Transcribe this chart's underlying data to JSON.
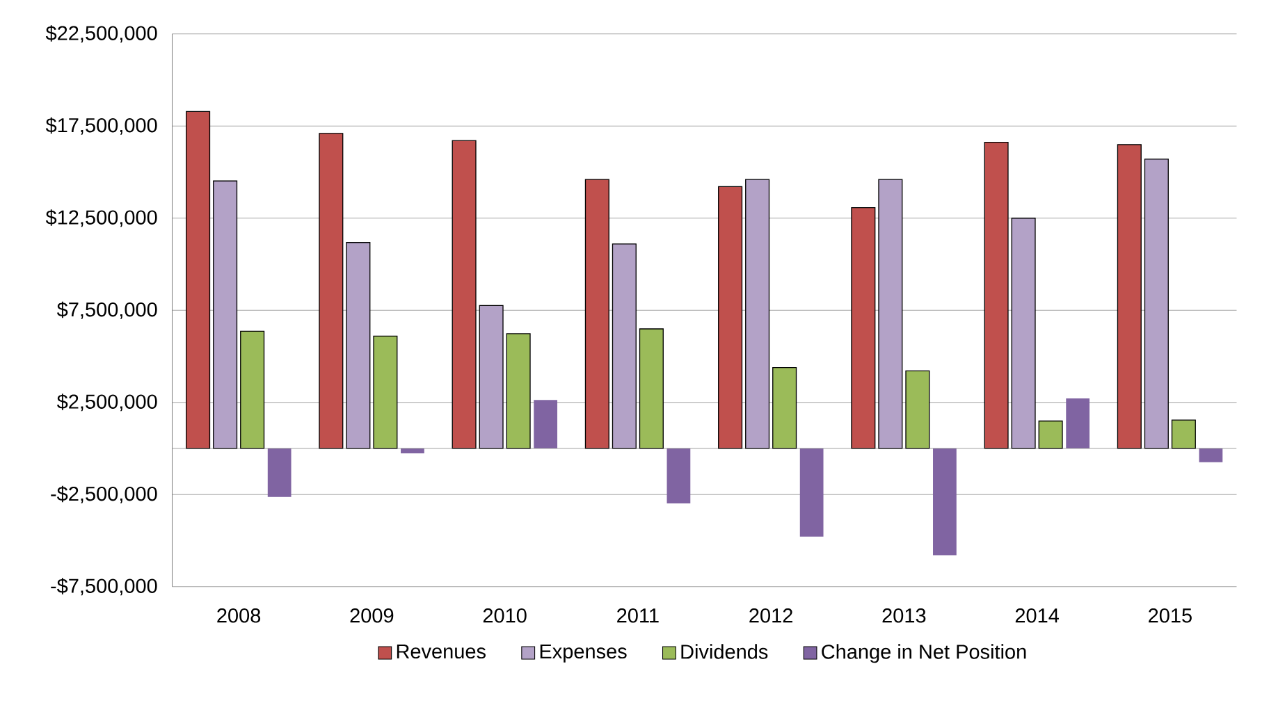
{
  "chart_data": {
    "type": "bar",
    "categories": [
      "2008",
      "2009",
      "2010",
      "2011",
      "2012",
      "2013",
      "2014",
      "2015"
    ],
    "series": [
      {
        "name": "Revenues",
        "color": "#c0504d",
        "values": [
          18290000,
          17100000,
          16710000,
          14600000,
          14210000,
          13070000,
          16620000,
          16490000
        ]
      },
      {
        "name": "Expenses",
        "color": "#b3a2c7",
        "values": [
          14520000,
          11180000,
          7760000,
          11100000,
          14600000,
          14600000,
          12500000,
          15700000
        ]
      },
      {
        "name": "Dividends",
        "color": "#9bbb59",
        "values": [
          6360000,
          6100000,
          6230000,
          6490000,
          4390000,
          4210000,
          1490000,
          1540000
        ]
      },
      {
        "name": "Change in Net Position",
        "color": "#8064a2",
        "values": [
          -2630000,
          -260000,
          2630000,
          -2980000,
          -4780000,
          -5790000,
          2720000,
          -750000
        ]
      }
    ],
    "ylim": [
      -7500000,
      22500000
    ],
    "yticks": [
      {
        "value": -7500000,
        "label": "-$7,500,000"
      },
      {
        "value": -2500000,
        "label": "-$2,500,000"
      },
      {
        "value": 2500000,
        "label": "$2,500,000"
      },
      {
        "value": 7500000,
        "label": "$7,500,000"
      },
      {
        "value": 12500000,
        "label": "$12,500,000"
      },
      {
        "value": 17500000,
        "label": "$17,500,000"
      },
      {
        "value": 22500000,
        "label": "$22,500,000"
      }
    ],
    "grid": "y",
    "legend": "bottom"
  }
}
